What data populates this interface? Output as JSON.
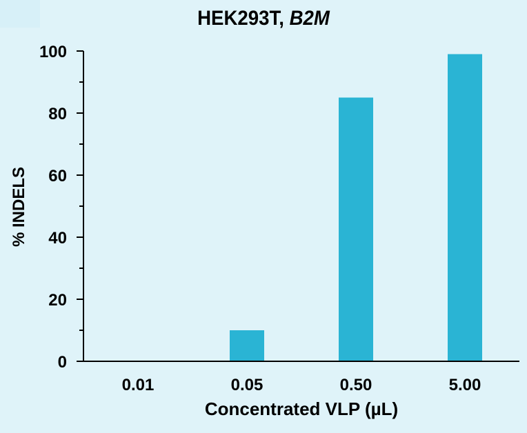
{
  "chart_data": {
    "type": "bar",
    "title": "HEK293T, B2M",
    "title_parts": {
      "plain": "HEK293T, ",
      "italic": "B2M"
    },
    "xlabel": "Concentrated VLP (µL)",
    "ylabel": "% INDELS",
    "categories": [
      "0.01",
      "0.05",
      "0.50",
      "5.00"
    ],
    "values": [
      0,
      10,
      85,
      99
    ],
    "ylim": [
      0,
      100
    ],
    "yticks": [
      0,
      20,
      40,
      60,
      80,
      100
    ],
    "grid": false,
    "legend": null,
    "bar_color": "#2ab4d4",
    "background_color": "#dff3f9"
  }
}
